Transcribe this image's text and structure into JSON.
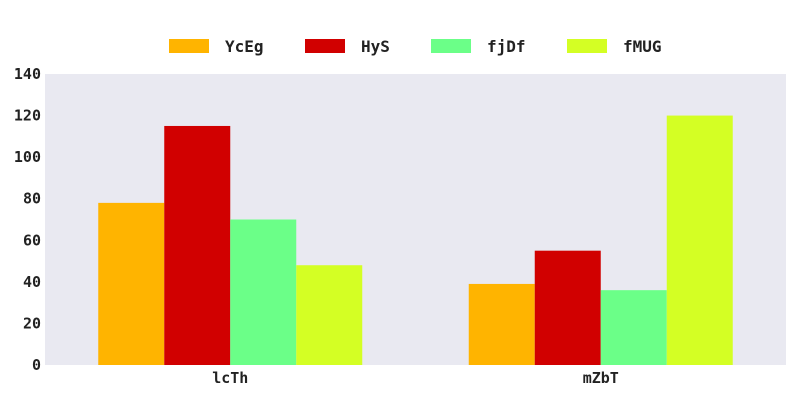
{
  "chart_data": {
    "type": "bar",
    "categories": [
      "lcTh",
      "mZbT"
    ],
    "series": [
      {
        "name": "YcEg",
        "values": [
          78,
          39
        ],
        "color": "#ffb400"
      },
      {
        "name": "HyS",
        "values": [
          115,
          55
        ],
        "color": "#d10000"
      },
      {
        "name": "fjDf",
        "values": [
          70,
          36
        ],
        "color": "#6bff88"
      },
      {
        "name": "fMUG",
        "values": [
          48,
          120
        ],
        "color": "#d4ff24"
      }
    ],
    "ylim": [
      0,
      140
    ],
    "yticks": [
      0,
      20,
      40,
      60,
      80,
      100,
      120,
      140
    ],
    "title": "",
    "xlabel": "",
    "ylabel": "",
    "legend_position": "top-center",
    "background_color": "#e9e9f1",
    "grid": false
  }
}
